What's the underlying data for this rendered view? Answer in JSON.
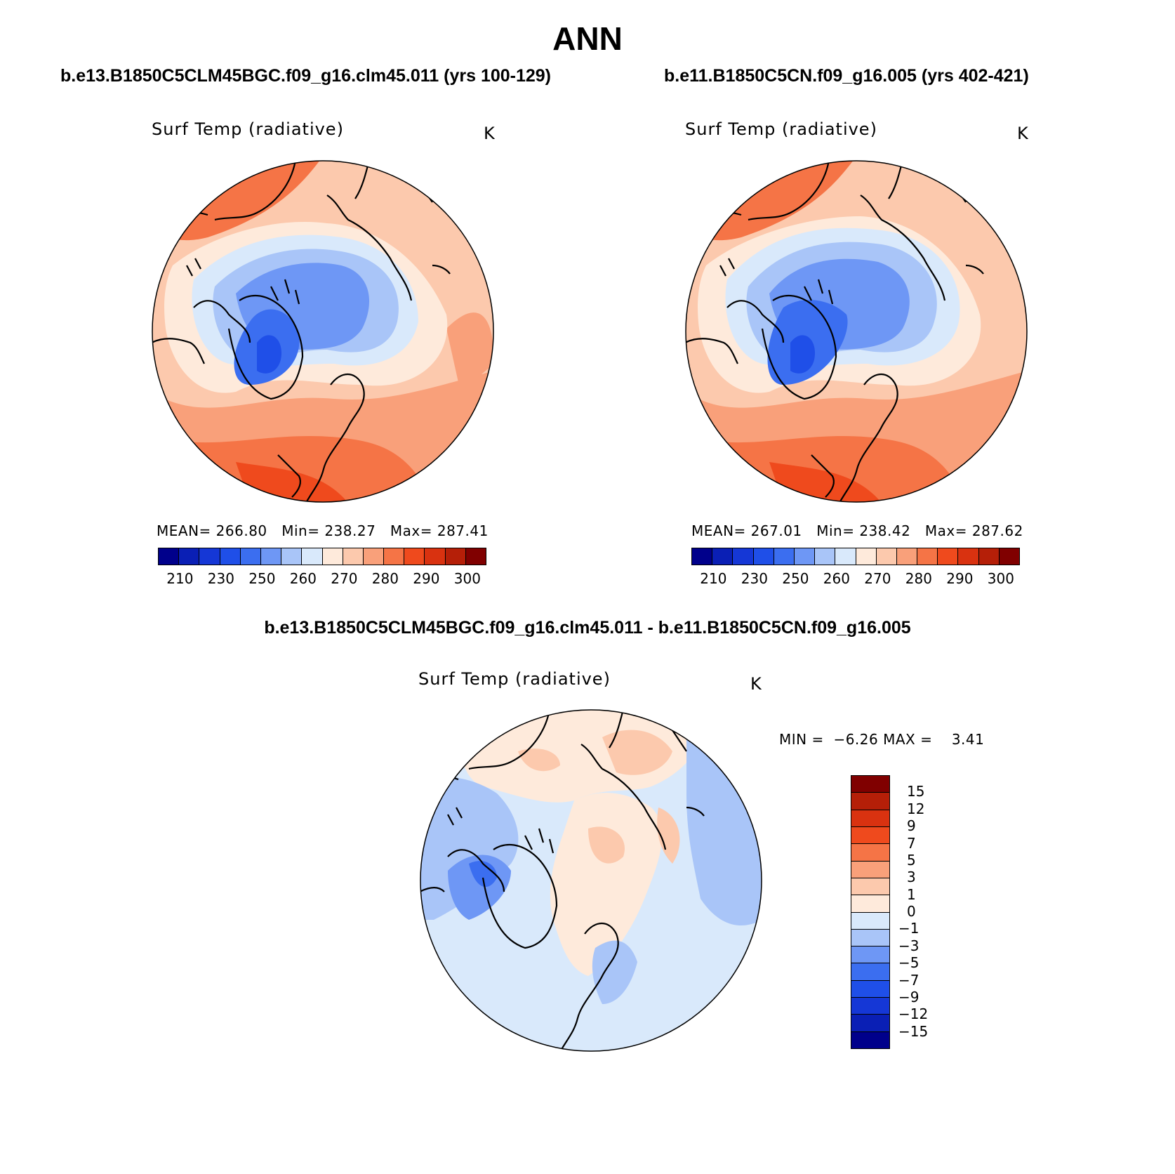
{
  "title": "ANN",
  "panels": [
    {
      "case": "b.e13.B1850C5CLM45BGC.f09_g16.clm45.011 (yrs 100-129)",
      "variable": "Surf Temp (radiative)",
      "units": "K",
      "mean_label": "MEAN=",
      "mean": "266.80",
      "min_label": "Min=",
      "min": "238.27",
      "max_label": "Max=",
      "max": "287.41"
    },
    {
      "case": "b.e11.B1850C5CN.f09_g16.005 (yrs 402-421)",
      "variable": "Surf Temp (radiative)",
      "units": "K",
      "mean_label": "MEAN=",
      "mean": "267.01",
      "min_label": "Min=",
      "min": "238.42",
      "max_label": "Max=",
      "max": "287.62"
    }
  ],
  "abs_colorbar": {
    "colors": [
      "#00008b",
      "#0a1fb5",
      "#1537d6",
      "#1f4fe8",
      "#3b6ef0",
      "#6e97f5",
      "#a9c5f8",
      "#d9e9fb",
      "#feeadb",
      "#fcc9ad",
      "#f9a07a",
      "#f57446",
      "#ef4a1d",
      "#d93210",
      "#b51f08",
      "#800000"
    ],
    "tick_labels": [
      "210",
      "230",
      "250",
      "260",
      "270",
      "280",
      "290",
      "300"
    ]
  },
  "diff": {
    "title": "b.e13.B1850C5CLM45BGC.f09_g16.clm45.011 - b.e11.B1850C5CN.f09_g16.005",
    "variable": "Surf Temp (radiative)",
    "units": "K",
    "min_label": "MIN =",
    "min": "−6.26",
    "max_label": "MAX =",
    "max": "3.41"
  },
  "diff_colorbar": {
    "colors_top_to_bottom": [
      "#800000",
      "#b51f08",
      "#d93210",
      "#ef4a1d",
      "#f57446",
      "#f9a07a",
      "#fcc9ad",
      "#feeadb",
      "#d9e9fb",
      "#a9c5f8",
      "#6e97f5",
      "#3b6ef0",
      "#1f4fe8",
      "#1537d6",
      "#0a1fb5",
      "#00008b"
    ],
    "tick_labels": [
      "15",
      "12",
      "9",
      "7",
      "5",
      "3",
      "1",
      "0",
      "−1",
      "−3",
      "−5",
      "−7",
      "−9",
      "−12",
      "−15"
    ]
  }
}
